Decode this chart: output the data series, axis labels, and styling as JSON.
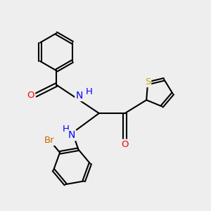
{
  "bg_color": "#eeeeee",
  "bond_color": "#000000",
  "bond_width": 1.5,
  "atom_colors": {
    "O": "#ff0000",
    "N": "#0000ff",
    "S": "#ccaa00",
    "Br": "#cc6600",
    "H": "#0000ff"
  },
  "font_size": 9.5,
  "fig_size": [
    3.0,
    3.0
  ],
  "xlim": [
    1.0,
    8.5
  ],
  "ylim": [
    0.8,
    8.8
  ]
}
